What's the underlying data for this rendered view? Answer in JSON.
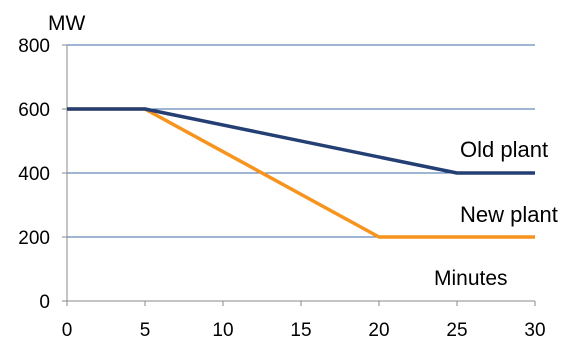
{
  "chart_data": {
    "type": "line",
    "title": "",
    "ylabel": "MW",
    "xlabel": "Minutes",
    "x": [
      0,
      5,
      20,
      25,
      30
    ],
    "xlim": [
      0,
      30
    ],
    "ylim": [
      0,
      800
    ],
    "xticks": [
      "0",
      "5",
      "10",
      "15",
      "20",
      "25",
      "30"
    ],
    "yticks": [
      "0",
      "200",
      "400",
      "600",
      "800"
    ],
    "grid": "horizontal",
    "legend": "direct labels at right end of lines",
    "series": [
      {
        "name": "Old plant",
        "color": "#243F73",
        "points": [
          [
            0,
            600
          ],
          [
            5,
            600
          ],
          [
            25,
            400
          ],
          [
            30,
            400
          ]
        ]
      },
      {
        "name": "New plant",
        "color": "#F7941E",
        "points": [
          [
            0,
            600
          ],
          [
            5,
            600
          ],
          [
            20,
            200
          ],
          [
            30,
            200
          ]
        ]
      }
    ],
    "gridline_color": "#3E6DA8"
  }
}
